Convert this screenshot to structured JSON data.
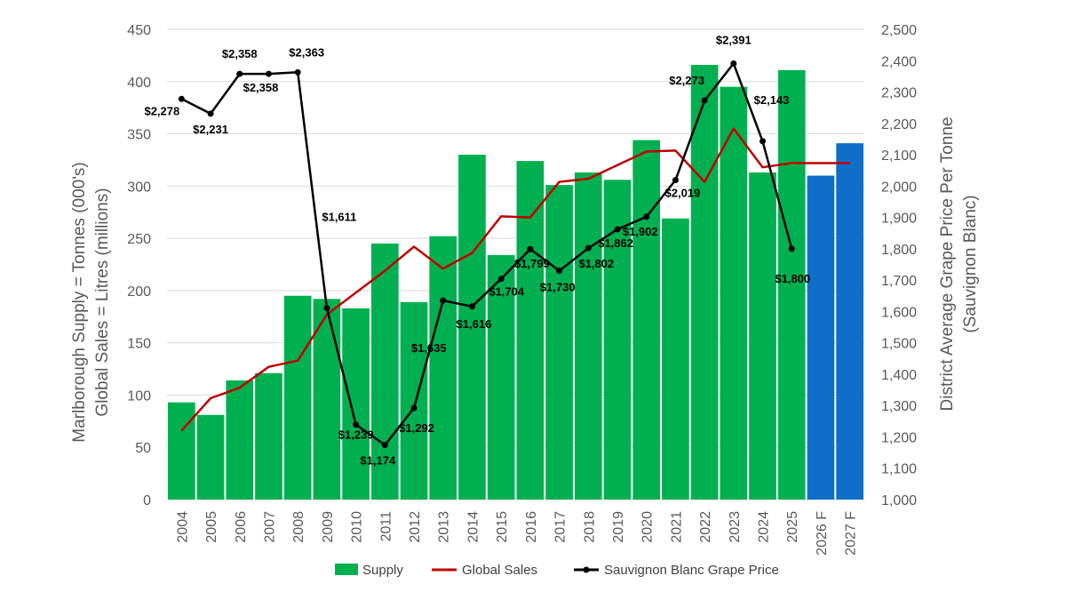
{
  "chart_data": {
    "type": "bar",
    "categories": [
      "2004",
      "2005",
      "2006",
      "2007",
      "2008",
      "2009",
      "2010",
      "2011",
      "2012",
      "2013",
      "2014",
      "2015",
      "2016",
      "2017",
      "2018",
      "2019",
      "2020",
      "2021",
      "2022",
      "2023",
      "2024",
      "2025",
      "2026 F",
      "2027 F"
    ],
    "y_left": {
      "label_lines": [
        "Marlborough Supply = Tonnes (000's)",
        "Global Sales = Litres (millions)"
      ],
      "range": [
        0,
        450
      ],
      "ticks": [
        "0",
        "50",
        "100",
        "150",
        "200",
        "250",
        "300",
        "350",
        "400",
        "450"
      ]
    },
    "y_right": {
      "label_lines": [
        "District Average Grape Price Per Tonne",
        "(Sauvignon Blanc)"
      ],
      "range": [
        1000,
        2500
      ],
      "ticks": [
        "1,000",
        "1,100",
        "1,200",
        "1,300",
        "1,400",
        "1,500",
        "1,600",
        "1,700",
        "1,800",
        "1,900",
        "2,000",
        "2,100",
        "2,200",
        "2,300",
        "2,400",
        "2,500"
      ]
    },
    "grid": true,
    "legend_position": "bottom",
    "series": [
      {
        "name": "Supply",
        "kind": "bar",
        "axis": "left",
        "color": "#00b050",
        "forecast_color": "#0f6fc6",
        "forecast_categories": [
          "2026 F",
          "2027 F"
        ],
        "values": [
          93,
          81,
          114,
          121,
          195,
          192,
          183,
          245,
          189,
          252,
          330,
          234,
          324,
          301,
          313,
          306,
          344,
          269,
          416,
          395,
          313,
          411,
          310,
          341
        ]
      },
      {
        "name": "Global Sales",
        "kind": "line",
        "axis": "left",
        "color": "#c00000",
        "values": [
          66,
          97,
          107,
          127,
          133,
          177,
          198,
          219,
          242,
          221,
          236,
          271,
          270,
          304,
          307,
          320,
          333,
          334,
          304,
          355,
          318,
          322,
          322,
          322
        ]
      },
      {
        "name": "Sauvignon Blanc Grape Price",
        "kind": "line",
        "axis": "right",
        "color": "#000000",
        "values": [
          2278,
          2231,
          2358,
          2358,
          2363,
          1611,
          1239,
          1174,
          1292,
          1635,
          1616,
          1704,
          1799,
          1730,
          1802,
          1862,
          1902,
          2019,
          2273,
          2391,
          2143,
          1800,
          null,
          null
        ],
        "labels": [
          "$2,278",
          "$2,231",
          "$2,358",
          "$2,358",
          "$2,363",
          "$1,611",
          "$1,239",
          "$1,174",
          "$1,292",
          "$1,635",
          "$1,616",
          "$1,704",
          "$1,799",
          "$1,730",
          "$1,802",
          "$1,862",
          "$1,902",
          "$2,019",
          "$2,273",
          "$2,391",
          "$2,143",
          "$1,800",
          null,
          null
        ]
      }
    ]
  }
}
